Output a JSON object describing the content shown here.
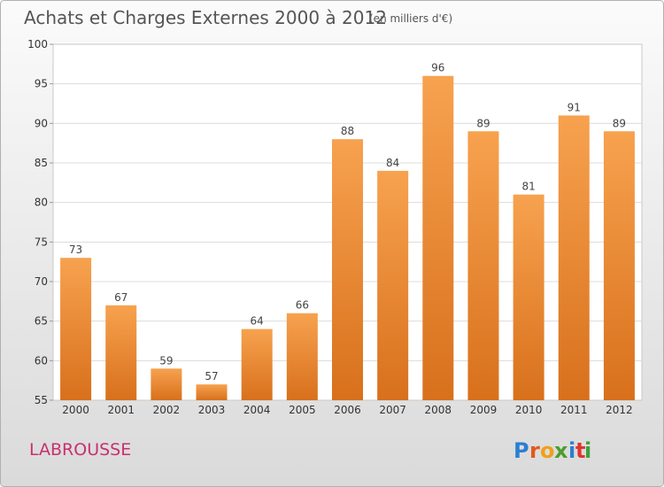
{
  "chart_data": {
    "type": "bar",
    "title": "Achats et Charges Externes 2000 à 2012",
    "subtitle": "(en milliers d'€)",
    "categories": [
      "2000",
      "2001",
      "2002",
      "2003",
      "2004",
      "2005",
      "2006",
      "2007",
      "2008",
      "2009",
      "2010",
      "2011",
      "2012"
    ],
    "values": [
      73,
      67,
      59,
      57,
      64,
      66,
      88,
      84,
      96,
      89,
      81,
      91,
      89
    ],
    "xlabel": "",
    "ylabel": "",
    "ylim": [
      55,
      100
    ],
    "yticks": [
      55,
      60,
      65,
      70,
      75,
      80,
      85,
      90,
      95,
      100
    ],
    "grid": true,
    "legend": "none"
  },
  "footer": {
    "place": "LABROUSSE",
    "brand_letters": [
      "P",
      "r",
      "o",
      "x",
      "i",
      "t",
      "i"
    ]
  },
  "colors": {
    "bar_light": "#f7a24f",
    "bar_dark": "#d8701c",
    "place_text": "#c8306e",
    "brand": [
      "#2b7fd1",
      "#e2591b",
      "#f0a017",
      "#4b9e2c",
      "#2b7fd1",
      "#e0342e",
      "#3da13a"
    ]
  }
}
